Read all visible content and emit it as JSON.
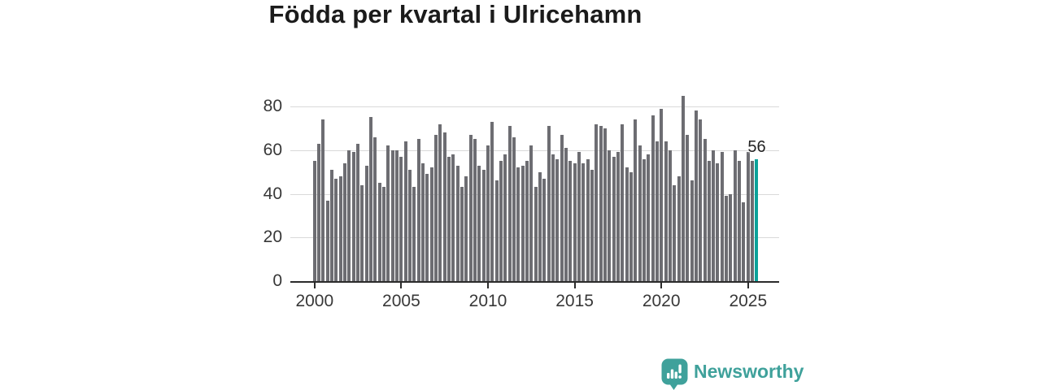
{
  "title": "Födda per kvartal i Ulricehamn",
  "chart_data": {
    "type": "bar",
    "title": "Födda per kvartal i Ulricehamn",
    "frequency": "quarterly",
    "start_period": "2000 Q1",
    "end_period": "2025 Q3",
    "x_ticks": [
      "2000",
      "2005",
      "2010",
      "2015",
      "2020",
      "2025"
    ],
    "y_ticks": [
      "0",
      "20",
      "40",
      "60",
      "80"
    ],
    "ylim": [
      0,
      88
    ],
    "grid": "horizontal-light",
    "legend_position": "none",
    "bar_color": "#6d6d72",
    "highlight_color": "#0ba29a",
    "highlight_last_bar": true,
    "last_value_label": "56",
    "values": [
      55,
      63,
      74,
      37,
      51,
      47,
      48,
      54,
      60,
      59,
      63,
      44,
      53,
      75,
      66,
      45,
      43,
      62,
      60,
      60,
      57,
      64,
      51,
      43,
      65,
      54,
      49,
      52,
      67,
      72,
      68,
      57,
      58,
      53,
      43,
      48,
      67,
      65,
      53,
      51,
      62,
      73,
      46,
      55,
      58,
      71,
      66,
      52,
      53,
      55,
      62,
      43,
      50,
      47,
      71,
      58,
      56,
      67,
      61,
      55,
      54,
      59,
      54,
      56,
      51,
      72,
      71,
      70,
      60,
      57,
      59,
      72,
      52,
      50,
      74,
      62,
      56,
      58,
      76,
      64,
      79,
      64,
      60,
      44,
      48,
      85,
      67,
      46,
      78,
      74,
      65,
      55,
      60,
      54,
      59,
      39,
      40,
      60,
      55,
      36,
      59,
      55,
      56
    ]
  },
  "branding": {
    "label": "Newsworthy",
    "color": "#3fa19b",
    "icon": "newsworthy-bar-chart-bubble-icon"
  }
}
